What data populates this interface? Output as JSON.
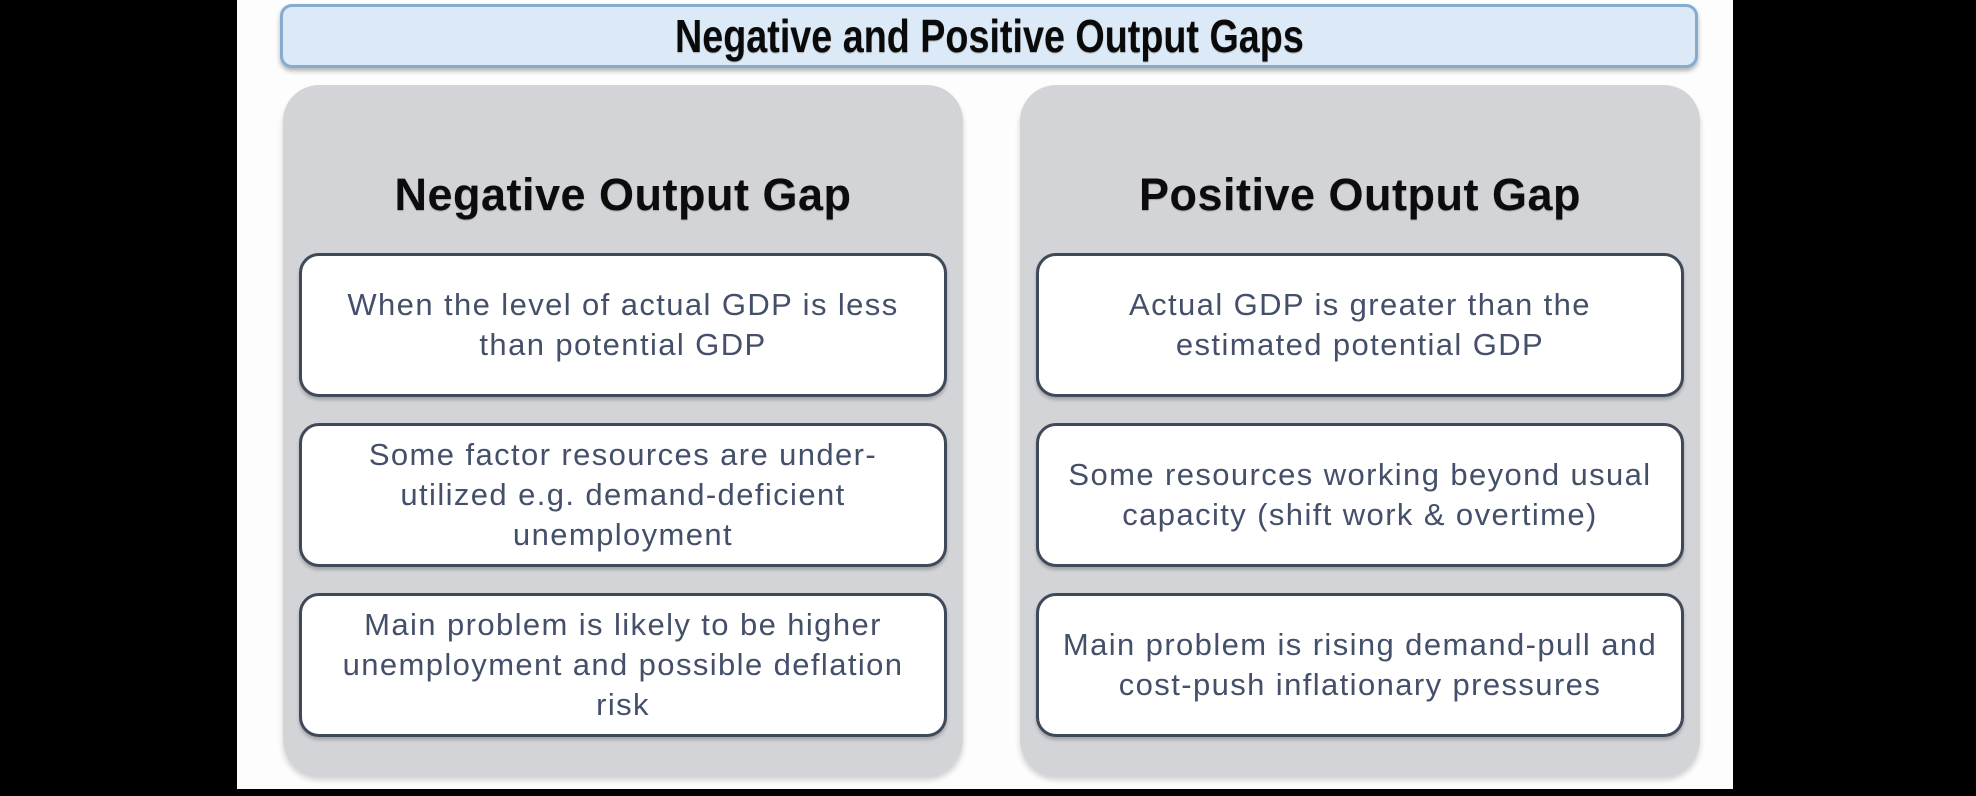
{
  "title": "Negative and Positive Output Gaps",
  "columns": [
    {
      "heading": "Negative Output Gap",
      "cards": [
        "When the level of actual GDP is less than potential GDP",
        "Some factor resources are under-utilized e.g. demand-deficient unemployment",
        "Main problem is likely to be higher unemployment and possible deflation risk"
      ]
    },
    {
      "heading": "Positive Output Gap",
      "cards": [
        "Actual GDP is greater than the estimated potential GDP",
        "Some resources working beyond usual capacity (shift work & overtime)",
        "Main problem is rising demand-pull and cost-push inflationary pressures"
      ]
    }
  ],
  "colors": {
    "letterbox": "#000000",
    "content_background": "#fdfdfd",
    "title_fill": "#dce9f6",
    "title_border": "#85acd0",
    "panel_fill": "#d2d4d7",
    "card_fill": "#ffffff",
    "card_border": "#3e4959",
    "card_text": "#44506a",
    "heading_text": "#0c0c0c"
  }
}
